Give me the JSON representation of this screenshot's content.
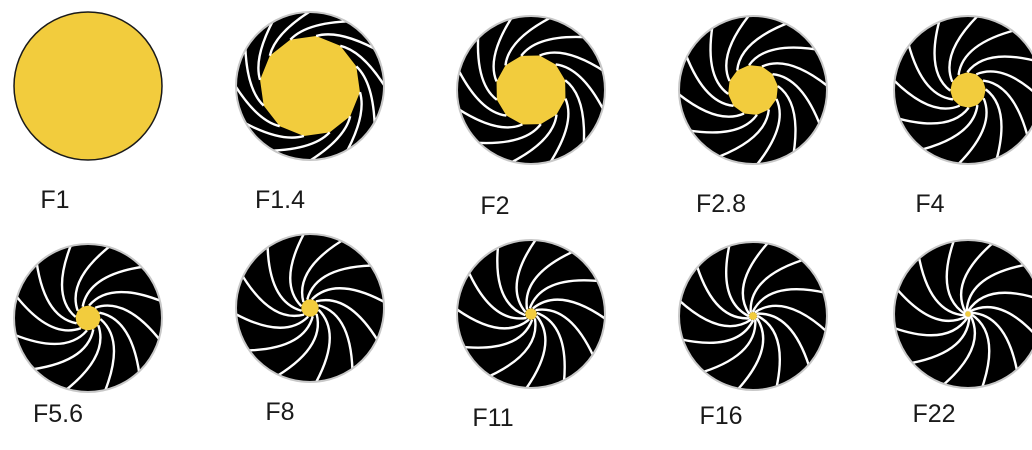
{
  "colors": {
    "opening": "#f2cc3d",
    "blade": "#000000",
    "blade_edge": "#ffffff",
    "rim": "#c8c8c8",
    "label_text": "#1a1a1a"
  },
  "apertures": [
    {
      "label": "F1",
      "opening": 1.0
    },
    {
      "label": "F1.4",
      "opening": 0.68
    },
    {
      "label": "F2",
      "opening": 0.48
    },
    {
      "label": "F2.8",
      "opening": 0.34
    },
    {
      "label": "F4",
      "opening": 0.24
    },
    {
      "label": "F5.6",
      "opening": 0.17
    },
    {
      "label": "F8",
      "opening": 0.12
    },
    {
      "label": "F11",
      "opening": 0.08
    },
    {
      "label": "F16",
      "opening": 0.055
    },
    {
      "label": "F22",
      "opening": 0.04
    }
  ]
}
